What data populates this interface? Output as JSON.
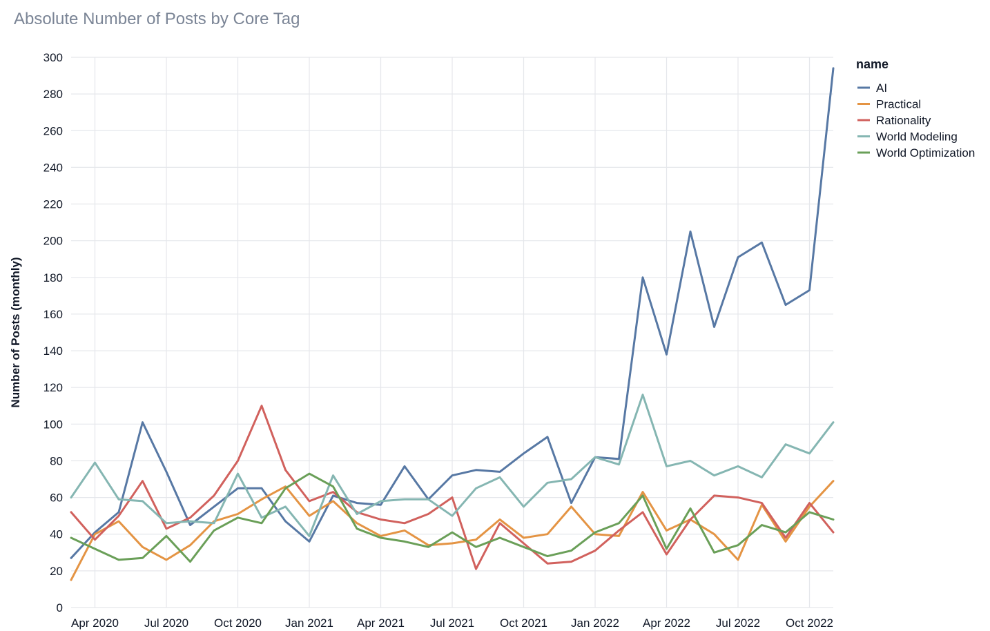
{
  "chart_data": {
    "type": "line",
    "title": "Absolute Number of Posts by Core Tag",
    "xlabel": "",
    "ylabel": "Number of Posts (monthly)",
    "x": [
      "2020-03",
      "2020-04",
      "2020-05",
      "2020-06",
      "2020-07",
      "2020-08",
      "2020-09",
      "2020-10",
      "2020-11",
      "2020-12",
      "2021-01",
      "2021-02",
      "2021-03",
      "2021-04",
      "2021-05",
      "2021-06",
      "2021-07",
      "2021-08",
      "2021-09",
      "2021-10",
      "2021-11",
      "2021-12",
      "2022-01",
      "2022-02",
      "2022-03",
      "2022-04",
      "2022-05",
      "2022-06",
      "2022-07",
      "2022-08",
      "2022-09",
      "2022-10",
      "2022-11"
    ],
    "x_tick_labels": [
      "Apr 2020",
      "Jul 2020",
      "Oct 2020",
      "Jan 2021",
      "Apr 2021",
      "Jul 2021",
      "Oct 2021",
      "Jan 2022",
      "Apr 2022",
      "Jul 2022",
      "Oct 2022"
    ],
    "x_tick_positions": [
      "2020-04",
      "2020-07",
      "2020-10",
      "2021-01",
      "2021-04",
      "2021-07",
      "2021-10",
      "2022-01",
      "2022-04",
      "2022-07",
      "2022-10"
    ],
    "ylim": [
      0,
      300
    ],
    "y_ticks": [
      0,
      20,
      40,
      60,
      80,
      100,
      120,
      140,
      160,
      180,
      200,
      220,
      240,
      260,
      280,
      300
    ],
    "grid": true,
    "legend_title": "name",
    "legend_position": "top-right, outside",
    "series": [
      {
        "name": "AI",
        "color": "#5778a4",
        "values": [
          27,
          41,
          52,
          101,
          74,
          45,
          55,
          65,
          65,
          47,
          36,
          61,
          57,
          56,
          77,
          59,
          72,
          75,
          74,
          84,
          93,
          57,
          82,
          81,
          180,
          138,
          205,
          153,
          191,
          199,
          165,
          173,
          294
        ]
      },
      {
        "name": "Practical",
        "color": "#e49444",
        "values": [
          15,
          40,
          47,
          33,
          26,
          34,
          47,
          51,
          59,
          66,
          50,
          58,
          46,
          39,
          42,
          34,
          35,
          37,
          48,
          38,
          40,
          55,
          40,
          39,
          63,
          42,
          48,
          40,
          26,
          56,
          36,
          55,
          69
        ]
      },
      {
        "name": "Rationality",
        "color": "#d1615d",
        "values": [
          52,
          37,
          50,
          69,
          43,
          49,
          61,
          80,
          110,
          75,
          58,
          63,
          52,
          48,
          46,
          51,
          60,
          21,
          46,
          35,
          24,
          25,
          31,
          42,
          52,
          29,
          48,
          61,
          60,
          57,
          38,
          57,
          41
        ]
      },
      {
        "name": "World Modeling",
        "color": "#85b6b2",
        "values": [
          60,
          79,
          59,
          58,
          46,
          47,
          46,
          73,
          49,
          55,
          39,
          72,
          51,
          58,
          59,
          59,
          50,
          65,
          71,
          55,
          68,
          70,
          82,
          78,
          116,
          77,
          80,
          72,
          77,
          71,
          89,
          84,
          101
        ]
      },
      {
        "name": "World Optimization",
        "color": "#6a9f58",
        "values": [
          38,
          32,
          26,
          27,
          39,
          25,
          42,
          49,
          46,
          65,
          73,
          66,
          43,
          38,
          36,
          33,
          41,
          33,
          38,
          33,
          28,
          31,
          41,
          46,
          61,
          32,
          54,
          30,
          34,
          45,
          41,
          52,
          48
        ]
      }
    ]
  }
}
